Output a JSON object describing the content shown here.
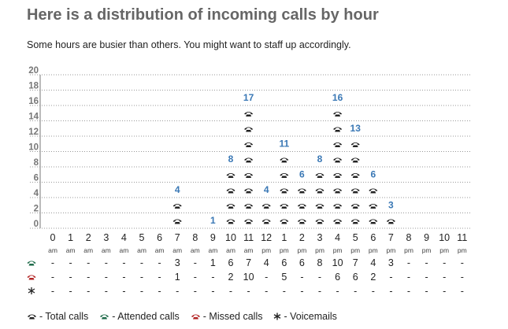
{
  "title": "Here is a distribution of incoming calls by hour",
  "subtitle": "Some hours are busier than others. You might want to staff up accordingly.",
  "colors": {
    "total": "#222222",
    "attended": "#1f6b4a",
    "missed": "#b22222",
    "label": "#3a78b5",
    "axis": "#777777",
    "grid": "#999999"
  },
  "chart_data": {
    "type": "bar",
    "title": "Here is a distribution of incoming calls by hour",
    "xlabel": "",
    "ylabel": "",
    "ylim": [
      0,
      20
    ],
    "y_ticks": [
      "0",
      "2",
      "4",
      "6",
      "8",
      "10",
      "12",
      "14",
      "16",
      "18",
      "20"
    ],
    "grid": true,
    "categories": [
      "0 am",
      "1 am",
      "2 am",
      "3 am",
      "4 am",
      "5 am",
      "6 am",
      "7 am",
      "8 am",
      "9 am",
      "10 am",
      "11 am",
      "12 pm",
      "1 pm",
      "2 pm",
      "3 pm",
      "4 pm",
      "5 pm",
      "6 pm",
      "7 pm",
      "8 pm",
      "9 pm",
      "10 pm",
      "11 pm"
    ],
    "hour_labels": [
      "0",
      "1",
      "2",
      "3",
      "4",
      "5",
      "6",
      "7",
      "8",
      "9",
      "10",
      "11",
      "12",
      "1",
      "2",
      "3",
      "4",
      "5",
      "6",
      "7",
      "8",
      "9",
      "10",
      "11"
    ],
    "ampm_labels": [
      "am",
      "am",
      "am",
      "am",
      "am",
      "am",
      "am",
      "am",
      "am",
      "am",
      "am",
      "am",
      "pm",
      "pm",
      "pm",
      "pm",
      "pm",
      "pm",
      "pm",
      "pm",
      "pm",
      "pm",
      "pm",
      "pm"
    ],
    "series": [
      {
        "name": "Total calls",
        "values": [
          0,
          0,
          0,
          0,
          0,
          0,
          0,
          4,
          0,
          1,
          8,
          17,
          4,
          11,
          6,
          8,
          16,
          13,
          6,
          3,
          0,
          0,
          0,
          0
        ]
      }
    ]
  },
  "table": {
    "rows": [
      {
        "icon": "attended-phone-icon",
        "cells": [
          "-",
          "-",
          "-",
          "-",
          "-",
          "-",
          "-",
          "3",
          "-",
          "1",
          "6",
          "7",
          "4",
          "6",
          "6",
          "8",
          "10",
          "7",
          "4",
          "3",
          "-",
          "-",
          "-",
          "-"
        ]
      },
      {
        "icon": "missed-phone-icon",
        "cells": [
          "-",
          "-",
          "-",
          "-",
          "-",
          "-",
          "-",
          "1",
          "-",
          "-",
          "2",
          "10",
          "-",
          "5",
          "-",
          "-",
          "6",
          "6",
          "2",
          "-",
          "-",
          "-",
          "-",
          "-"
        ]
      },
      {
        "icon": "voicemail-icon",
        "cells": [
          "-",
          "-",
          "-",
          "-",
          "-",
          "-",
          "-",
          "-",
          "-",
          "-",
          "-",
          "-",
          "-",
          "-",
          "-",
          "-",
          "-",
          "-",
          "-",
          "-",
          "-",
          "-",
          "-",
          "-"
        ]
      }
    ]
  },
  "legend": {
    "total": "- Total calls",
    "attended": "- Attended calls",
    "missed": "- Missed calls",
    "voicemail": "- Voicemails"
  }
}
